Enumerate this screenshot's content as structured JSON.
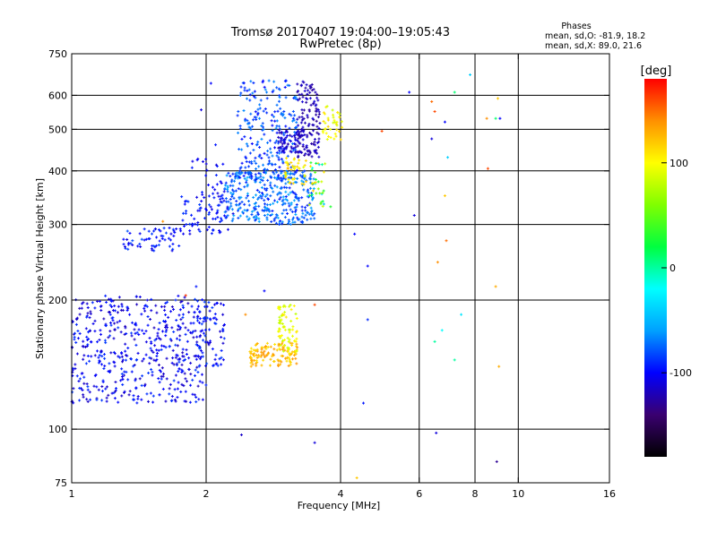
{
  "chart_data": {
    "type": "scatter",
    "title": "Tromsø 20170407 19:04:00–19:05:43",
    "subtitle": "RwPretec (8p)",
    "stats": {
      "heading": "Phases",
      "line1": "mean, sd,O: -81.9, 18.2",
      "line2": "mean, sd,X: 89.0, 21.6"
    },
    "xlabel": "Frequency [MHz]",
    "ylabel": "Stationary phase Virtual Height [km]",
    "x_scale": "log2",
    "y_scale": "log",
    "xlim": [
      1,
      16
    ],
    "ylim": [
      75,
      750
    ],
    "x_ticks": [
      1,
      2,
      4,
      6,
      8,
      10,
      16
    ],
    "x_tick_labels": [
      "1",
      "2",
      "4",
      "6",
      "8",
      "10",
      "16"
    ],
    "x_gridlines": [
      2,
      4,
      6,
      8,
      10
    ],
    "y_ticks": [
      75,
      100,
      200,
      300,
      400,
      500,
      600,
      750
    ],
    "y_tick_labels": [
      "75",
      "100",
      "200",
      "300",
      "400",
      "500",
      "600",
      "750"
    ],
    "y_gridlines": [
      100,
      200,
      300,
      400,
      500,
      600
    ],
    "grid": true,
    "colorbar": {
      "label": "[deg]",
      "range": [
        -180,
        180
      ],
      "ticks": [
        100,
        0,
        -100
      ],
      "tick_labels": [
        "100",
        "0",
        "-100"
      ],
      "colors": [
        "#000000",
        "#3a0070",
        "#0000ff",
        "#00a0ff",
        "#00ffff",
        "#00ff40",
        "#80ff00",
        "#ffff00",
        "#ff9000",
        "#ff0000"
      ]
    },
    "series": [
      {
        "type": "clusters",
        "clusters": [
          {
            "x": [
              1.0,
              2.0
            ],
            "y": [
              115,
              205
            ],
            "n": 520,
            "phase": [
              -120,
              -85
            ]
          },
          {
            "x": [
              1.9,
              2.2
            ],
            "y": [
              140,
              200
            ],
            "n": 70,
            "phase": [
              -115,
              -80
            ]
          },
          {
            "x": [
              1.3,
              1.75
            ],
            "y": [
              260,
              295
            ],
            "n": 60,
            "phase": [
              -110,
              -80
            ]
          },
          {
            "x": [
              1.75,
              2.3
            ],
            "y": [
              285,
              350
            ],
            "n": 80,
            "phase": [
              -110,
              -85
            ]
          },
          {
            "x": [
              1.85,
              2.2
            ],
            "y": [
              350,
              430
            ],
            "n": 25,
            "phase": [
              -110,
              -90
            ]
          },
          {
            "x": [
              2.2,
              3.5
            ],
            "y": [
              300,
              400
            ],
            "n": 360,
            "phase": [
              -95,
              -55
            ]
          },
          {
            "x": [
              2.35,
              3.2
            ],
            "y": [
              380,
              650
            ],
            "n": 240,
            "phase": [
              -100,
              -65
            ]
          },
          {
            "x": [
              2.9,
              3.3
            ],
            "y": [
              440,
              500
            ],
            "n": 70,
            "phase": [
              -125,
              -105
            ]
          },
          {
            "x": [
              3.2,
              3.6
            ],
            "y": [
              430,
              650
            ],
            "n": 130,
            "phase": [
              -130,
              -110
            ]
          },
          {
            "x": [
              3.0,
              3.35
            ],
            "y": [
              370,
              430
            ],
            "n": 40,
            "phase": [
              90,
              120
            ]
          },
          {
            "x": [
              3.4,
              3.7
            ],
            "y": [
              330,
              420
            ],
            "n": 35,
            "phase": [
              -50,
              130
            ]
          },
          {
            "x": [
              3.65,
              4.05
            ],
            "y": [
              470,
              570
            ],
            "n": 40,
            "phase": [
              80,
              115
            ]
          },
          {
            "x": [
              2.5,
              3.2
            ],
            "y": [
              140,
              160
            ],
            "n": 120,
            "phase": [
              110,
              140
            ]
          },
          {
            "x": [
              2.9,
              3.2
            ],
            "y": [
              150,
              195
            ],
            "n": 70,
            "phase": [
              80,
              110
            ]
          }
        ]
      },
      {
        "type": "points",
        "x": [
          1.95,
          2.05,
          2.1,
          2.4,
          2.7,
          3.5,
          3.8,
          4.35,
          4.6,
          4.5,
          4.6,
          3.05,
          4.3,
          4.95,
          5.7,
          6.4,
          6.6,
          6.55,
          6.5,
          6.75,
          6.9,
          6.85,
          6.95,
          7.2,
          7.45,
          7.2,
          7.8,
          8.5,
          8.9,
          9.0,
          8.55,
          8.9,
          9.05,
          8.95,
          9.1,
          6.5,
          6.85,
          1.6,
          1.9,
          3.5,
          5.85,
          6.4,
          1.8,
          2.45
        ],
        "y": [
          555,
          640,
          460,
          97,
          210,
          93,
          330,
          77,
          240,
          115,
          180,
          405,
          285,
          495,
          610,
          580,
          245,
          98,
          160,
          170,
          275,
          350,
          430,
          145,
          185,
          610,
          670,
          530,
          530,
          590,
          405,
          215,
          140,
          84,
          530,
          550,
          520,
          305,
          215,
          195,
          315,
          475,
          205,
          185
        ],
        "phase": [
          -110,
          -100,
          -95,
          -115,
          -100,
          -110,
          30,
          120,
          -100,
          -95,
          -90,
          130,
          -100,
          160,
          -100,
          150,
          140,
          -110,
          0,
          -20,
          150,
          120,
          -40,
          0,
          -30,
          10,
          -40,
          140,
          10,
          120,
          160,
          130,
          130,
          -130,
          -100,
          160,
          -100,
          140,
          -95,
          160,
          -110,
          -110,
          165,
          140
        ]
      }
    ]
  }
}
